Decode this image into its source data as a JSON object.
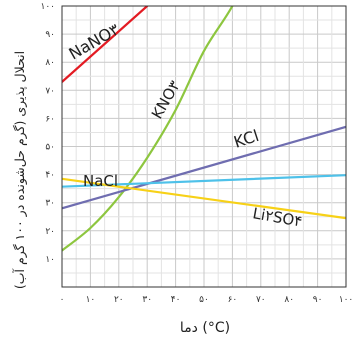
{
  "chart_data": {
    "type": "line",
    "xlabel": "دما (°C)",
    "ylabel": "انحلال پذیری (گرم حل‌شونده در ۱۰۰ گرم آب)",
    "xlim": [
      0,
      100
    ],
    "ylim": [
      0,
      100
    ],
    "x_ticks": [
      0,
      10,
      20,
      30,
      40,
      50,
      60,
      70,
      80,
      90,
      100
    ],
    "y_ticks": [
      10,
      20,
      30,
      40,
      50,
      60,
      70,
      80,
      90,
      100
    ],
    "x_tick_labels": [
      "۰",
      "۱۰",
      "۲۰",
      "۳۰",
      "۴۰",
      "۵۰",
      "۶۰",
      "۷۰",
      "۸۰",
      "۹۰",
      "۱۰۰"
    ],
    "y_tick_labels": [
      "۱۰",
      "۲۰",
      "۳۰",
      "۴۰",
      "۵۰",
      "۶۰",
      "۷۰",
      "۸۰",
      "۹۰",
      "۱۰۰"
    ],
    "grid": true,
    "series": [
      {
        "name": "NaNO۳",
        "color": "#e31b23",
        "x": [
          0,
          30
        ],
        "y": [
          73,
          100
        ]
      },
      {
        "name": "KNO۳",
        "color": "#8dc63f",
        "x": [
          0,
          10,
          20,
          30,
          40,
          50,
          60,
          70
        ],
        "y": [
          13,
          21,
          32,
          46,
          63,
          84,
          100,
          120
        ]
      },
      {
        "name": "KCl",
        "color": "#6f6db0",
        "x": [
          0,
          100
        ],
        "y": [
          28,
          57
        ]
      },
      {
        "name": "NaCl",
        "color": "#4ec1e9",
        "x": [
          0,
          100
        ],
        "y": [
          35.7,
          39.8
        ]
      },
      {
        "name": "Li۲SO۴",
        "color": "#f7d117",
        "x": [
          0,
          100
        ],
        "y": [
          38.5,
          24.5
        ]
      }
    ]
  }
}
